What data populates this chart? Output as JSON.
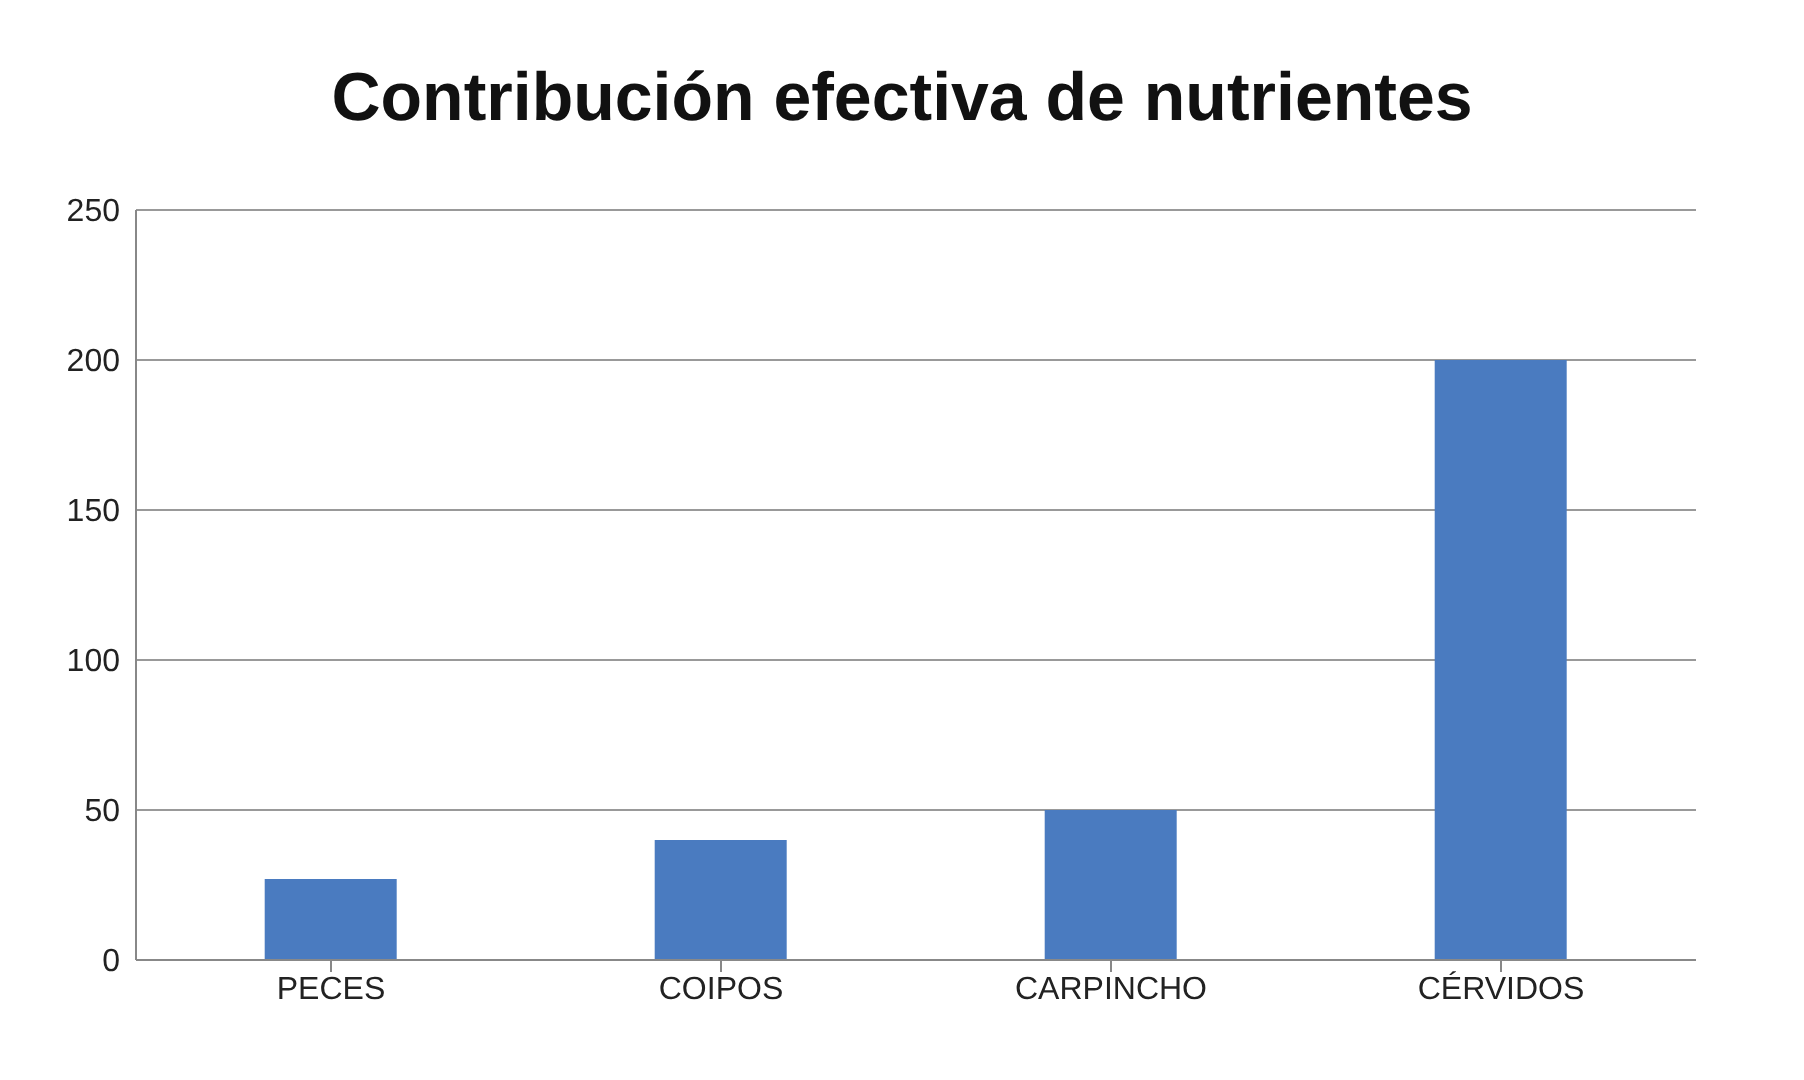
{
  "chart_data": {
    "type": "bar",
    "title": "Contribución efectiva de nutrientes",
    "categories": [
      "PECES",
      "COIPOS",
      "CARPINCHO",
      "CÉRVIDOS"
    ],
    "values": [
      27,
      40,
      50,
      200
    ],
    "color": "#4a7bc0",
    "ylim": [
      0,
      250
    ],
    "yticks": [
      0,
      50,
      100,
      150,
      200,
      250
    ],
    "grid": "y"
  }
}
